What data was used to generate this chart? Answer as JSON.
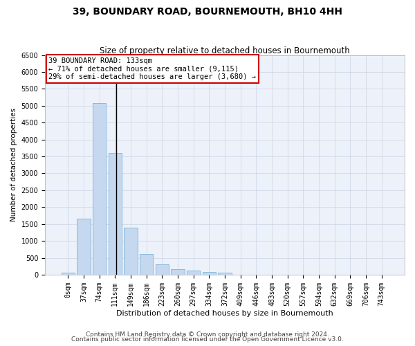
{
  "title": "39, BOUNDARY ROAD, BOURNEMOUTH, BH10 4HH",
  "subtitle": "Size of property relative to detached houses in Bournemouth",
  "xlabel": "Distribution of detached houses by size in Bournemouth",
  "ylabel": "Number of detached properties",
  "bar_labels": [
    "0sqm",
    "37sqm",
    "74sqm",
    "111sqm",
    "149sqm",
    "186sqm",
    "223sqm",
    "260sqm",
    "297sqm",
    "334sqm",
    "372sqm",
    "409sqm",
    "446sqm",
    "483sqm",
    "520sqm",
    "557sqm",
    "594sqm",
    "632sqm",
    "669sqm",
    "706sqm",
    "743sqm"
  ],
  "bar_values": [
    70,
    1650,
    5080,
    3600,
    1400,
    610,
    300,
    155,
    115,
    80,
    55,
    0,
    0,
    0,
    0,
    0,
    0,
    0,
    0,
    0,
    0
  ],
  "bar_color": "#c5d8f0",
  "bar_edge_color": "#7ab3d8",
  "annotation_text_line1": "39 BOUNDARY ROAD: 133sqm",
  "annotation_text_line2": "← 71% of detached houses are smaller (9,115)",
  "annotation_text_line3": "29% of semi-detached houses are larger (3,680) →",
  "annotation_box_color": "#ffffff",
  "annotation_box_edge_color": "#cc0000",
  "vline_color": "#000000",
  "vline_x_index": 3.58,
  "ylim": [
    0,
    6500
  ],
  "yticks": [
    0,
    500,
    1000,
    1500,
    2000,
    2500,
    3000,
    3500,
    4000,
    4500,
    5000,
    5500,
    6000,
    6500
  ],
  "grid_color": "#d0d8e8",
  "background_color": "#edf1f9",
  "footer_line1": "Contains HM Land Registry data © Crown copyright and database right 2024.",
  "footer_line2": "Contains public sector information licensed under the Open Government Licence v3.0.",
  "title_fontsize": 10,
  "subtitle_fontsize": 8.5,
  "xlabel_fontsize": 8,
  "ylabel_fontsize": 7.5,
  "tick_fontsize": 7,
  "footer_fontsize": 6.5,
  "ann_fontsize": 7.5
}
